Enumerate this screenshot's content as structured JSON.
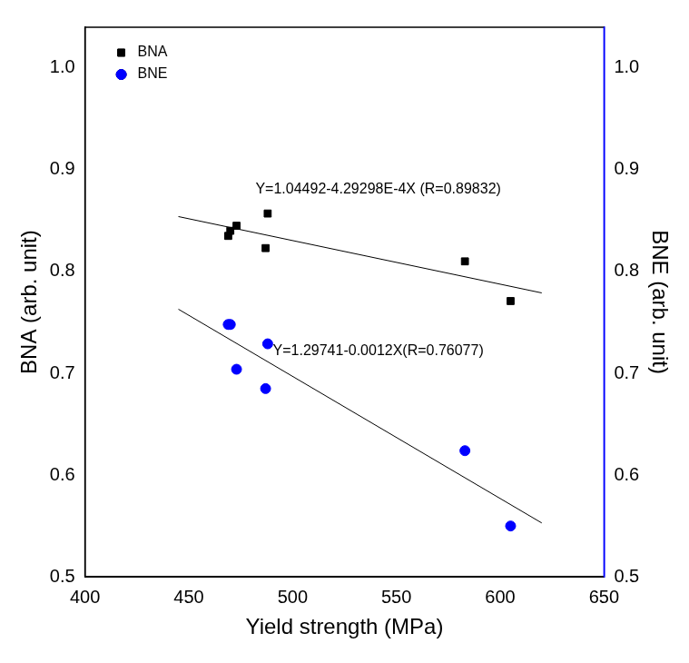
{
  "chart_data": {
    "type": "scatter",
    "x_label": "Yield strength (MPa)",
    "y_label": "BNA (arb. unit)",
    "y2_label": "BNE (arb. unit)",
    "xlim": [
      400,
      650
    ],
    "xticks": [
      400,
      450,
      500,
      550,
      600,
      650
    ],
    "ylim": [
      0.5,
      1.04
    ],
    "yticks": [
      0.5,
      0.6,
      0.7,
      0.8,
      0.9,
      {
        "value": 1,
        "label": "1.0"
      }
    ],
    "y2lim": [
      0.5,
      1.04
    ],
    "y2ticks": [
      0.5,
      0.6,
      0.7,
      0.8,
      0.9,
      {
        "value": 1,
        "label": "1.0"
      }
    ],
    "grid": false,
    "legend": "upper left",
    "x": [
      469,
      470,
      473,
      488,
      487,
      583,
      605
    ],
    "series": [
      {
        "name": "BNA",
        "color": "#000000",
        "marker": "square",
        "values": [
          0.835,
          0.84,
          0.845,
          0.857,
          0.823,
          0.81,
          0.771
        ]
      },
      {
        "name": "BNE",
        "color": "#0000ff",
        "marker": "circle",
        "axis": "y2",
        "values": [
          0.748,
          0.748,
          0.704,
          0.729,
          0.685,
          0.624,
          0.55
        ]
      }
    ],
    "fit_lines": [
      {
        "label": "Y=1.04492-4.29298E-4X (R=0.89832)",
        "color": "#000000",
        "line_style": "solid",
        "x": [
          445,
          620
        ],
        "values": [
          0.854,
          0.779
        ]
      },
      {
        "label": "Y=1.29741-0.0012X(R=0.76077)",
        "color": "#000000",
        "line_style": "solid",
        "axis": "y2",
        "x": [
          445,
          620
        ],
        "values": [
          0.763,
          0.553
        ]
      }
    ]
  }
}
